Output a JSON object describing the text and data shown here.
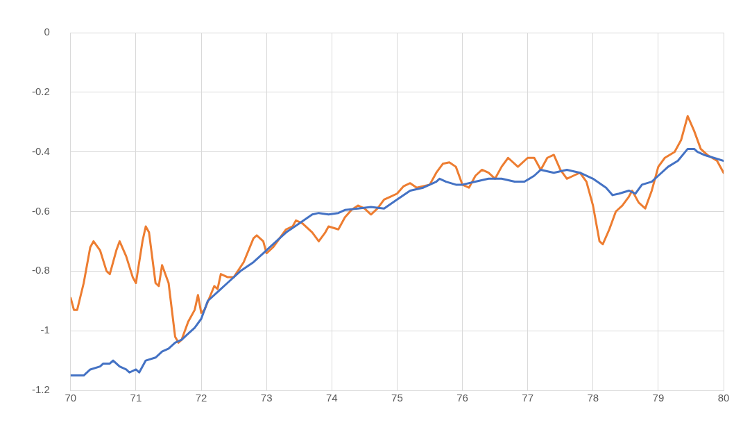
{
  "chart_data": {
    "type": "line",
    "series": [
      {
        "color": "#4472c4",
        "x": [
          70,
          70.2,
          70.3,
          70.45,
          70.5,
          70.6,
          70.65,
          70.75,
          70.85,
          70.9,
          71,
          71.05,
          71.15,
          71.3,
          71.4,
          71.5,
          71.6,
          71.7,
          71.8,
          71.9,
          72,
          72.1,
          72.3,
          72.4,
          72.6,
          72.8,
          72.95,
          73.1,
          73.3,
          73.5,
          73.7,
          73.8,
          73.95,
          74.1,
          74.2,
          74.4,
          74.6,
          74.8,
          75,
          75.2,
          75.4,
          75.6,
          75.65,
          75.75,
          75.9,
          76,
          76.2,
          76.4,
          76.6,
          76.8,
          76.95,
          77.1,
          77.2,
          77.4,
          77.6,
          77.8,
          78,
          78.2,
          78.3,
          78.4,
          78.55,
          78.65,
          78.75,
          78.9,
          79,
          79.15,
          79.3,
          79.45,
          79.55,
          79.6,
          79.7,
          79.85,
          80
        ],
        "values": [
          -1.15,
          -1.15,
          -1.13,
          -1.12,
          -1.11,
          -1.11,
          -1.1,
          -1.12,
          -1.13,
          -1.14,
          -1.13,
          -1.14,
          -1.1,
          -1.09,
          -1.07,
          -1.06,
          -1.04,
          -1.03,
          -1.01,
          -0.99,
          -0.96,
          -0.9,
          -0.86,
          -0.84,
          -0.8,
          -0.77,
          -0.74,
          -0.71,
          -0.67,
          -0.64,
          -0.61,
          -0.605,
          -0.61,
          -0.605,
          -0.595,
          -0.59,
          -0.585,
          -0.59,
          -0.56,
          -0.53,
          -0.52,
          -0.5,
          -0.49,
          -0.5,
          -0.51,
          -0.51,
          -0.5,
          -0.49,
          -0.49,
          -0.5,
          -0.5,
          -0.48,
          -0.46,
          -0.47,
          -0.46,
          -0.47,
          -0.49,
          -0.52,
          -0.545,
          -0.54,
          -0.53,
          -0.54,
          -0.51,
          -0.5,
          -0.48,
          -0.45,
          -0.43,
          -0.39,
          -0.39,
          -0.4,
          -0.41,
          -0.42,
          -0.43
        ]
      },
      {
        "color": "#ed7d31",
        "x": [
          70,
          70.05,
          70.1,
          70.2,
          70.3,
          70.35,
          70.45,
          70.55,
          70.6,
          70.7,
          70.75,
          70.85,
          70.95,
          71,
          71.1,
          71.15,
          71.2,
          71.3,
          71.35,
          71.4,
          71.5,
          71.6,
          71.65,
          71.7,
          71.8,
          71.9,
          71.95,
          72,
          72.05,
          72.2,
          72.25,
          72.3,
          72.4,
          72.5,
          72.65,
          72.8,
          72.85,
          72.95,
          73,
          73.1,
          73.3,
          73.4,
          73.45,
          73.55,
          73.7,
          73.8,
          73.9,
          73.95,
          74.1,
          74.2,
          74.3,
          74.4,
          74.5,
          74.6,
          74.7,
          74.8,
          74.9,
          75,
          75.1,
          75.2,
          75.3,
          75.5,
          75.6,
          75.7,
          75.8,
          75.9,
          76,
          76.1,
          76.2,
          76.3,
          76.4,
          76.5,
          76.6,
          76.7,
          76.85,
          77,
          77.1,
          77.2,
          77.3,
          77.4,
          77.5,
          77.6,
          77.7,
          77.8,
          77.9,
          78,
          78.1,
          78.15,
          78.25,
          78.35,
          78.45,
          78.55,
          78.6,
          78.7,
          78.8,
          78.9,
          79,
          79.1,
          79.25,
          79.35,
          79.45,
          79.55,
          79.65,
          79.75,
          79.9,
          80
        ],
        "values": [
          -0.89,
          -0.93,
          -0.93,
          -0.84,
          -0.72,
          -0.7,
          -0.73,
          -0.8,
          -0.81,
          -0.73,
          -0.7,
          -0.75,
          -0.82,
          -0.84,
          -0.7,
          -0.65,
          -0.67,
          -0.84,
          -0.85,
          -0.78,
          -0.84,
          -1.02,
          -1.04,
          -1.03,
          -0.97,
          -0.93,
          -0.88,
          -0.94,
          -0.93,
          -0.85,
          -0.86,
          -0.81,
          -0.82,
          -0.82,
          -0.77,
          -0.69,
          -0.68,
          -0.7,
          -0.74,
          -0.72,
          -0.66,
          -0.65,
          -0.63,
          -0.64,
          -0.67,
          -0.7,
          -0.67,
          -0.65,
          -0.66,
          -0.62,
          -0.595,
          -0.58,
          -0.59,
          -0.61,
          -0.59,
          -0.56,
          -0.55,
          -0.54,
          -0.515,
          -0.505,
          -0.52,
          -0.51,
          -0.47,
          -0.44,
          -0.435,
          -0.45,
          -0.51,
          -0.52,
          -0.48,
          -0.46,
          -0.47,
          -0.49,
          -0.45,
          -0.42,
          -0.45,
          -0.42,
          -0.42,
          -0.46,
          -0.42,
          -0.41,
          -0.46,
          -0.49,
          -0.48,
          -0.47,
          -0.5,
          -0.58,
          -0.7,
          -0.71,
          -0.66,
          -0.6,
          -0.58,
          -0.55,
          -0.53,
          -0.57,
          -0.59,
          -0.53,
          -0.45,
          -0.42,
          -0.4,
          -0.36,
          -0.28,
          -0.33,
          -0.39,
          -0.41,
          -0.43,
          -0.47
        ]
      }
    ],
    "xlim": [
      70,
      80
    ],
    "xticks": [
      70,
      71,
      72,
      73,
      74,
      75,
      76,
      77,
      78,
      79,
      80
    ],
    "ylim": [
      -1.2,
      0
    ],
    "yticks": [
      -1.2,
      -1,
      -0.8,
      -0.6,
      -0.4,
      -0.2,
      0
    ],
    "grid": true,
    "legend": false,
    "marker": "none",
    "line_style": "solid"
  }
}
